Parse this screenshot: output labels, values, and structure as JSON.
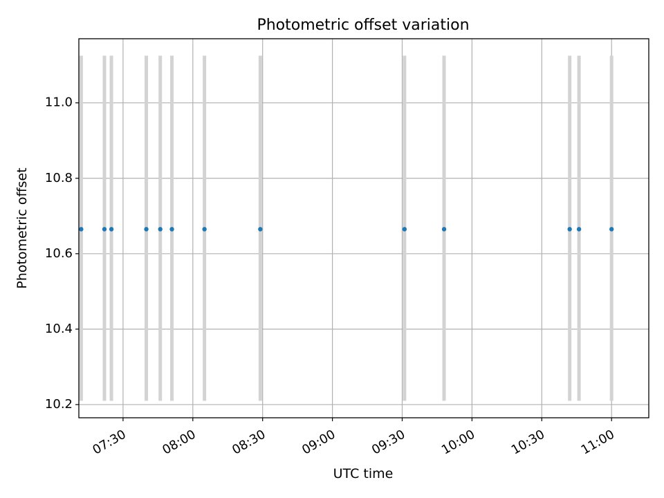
{
  "chart_data": {
    "type": "scatter",
    "title": "Photometric offset variation",
    "xlabel": "UTC time",
    "ylabel": "Photometric offset",
    "x_axis": {
      "kind": "time",
      "range": [
        "07:11",
        "11:16"
      ],
      "ticks": [
        "07:30",
        "08:00",
        "08:30",
        "09:00",
        "09:30",
        "10:00",
        "10:30",
        "11:00"
      ]
    },
    "y_axis": {
      "range": [
        10.165,
        11.17
      ],
      "ticks": [
        "10.2",
        "10.4",
        "10.6",
        "10.8",
        "11.0"
      ]
    },
    "grid": true,
    "points": [
      {
        "x": "07:12",
        "y": 10.665,
        "ylow": 10.21,
        "yhigh": 11.125
      },
      {
        "x": "07:22",
        "y": 10.665,
        "ylow": 10.21,
        "yhigh": 11.125
      },
      {
        "x": "07:25",
        "y": 10.665,
        "ylow": 10.21,
        "yhigh": 11.125
      },
      {
        "x": "07:40",
        "y": 10.665,
        "ylow": 10.21,
        "yhigh": 11.125
      },
      {
        "x": "07:46",
        "y": 10.665,
        "ylow": 10.21,
        "yhigh": 11.125
      },
      {
        "x": "07:51",
        "y": 10.665,
        "ylow": 10.21,
        "yhigh": 11.125
      },
      {
        "x": "08:05",
        "y": 10.665,
        "ylow": 10.21,
        "yhigh": 11.125
      },
      {
        "x": "08:29",
        "y": 10.665,
        "ylow": 10.21,
        "yhigh": 11.125
      },
      {
        "x": "09:31",
        "y": 10.665,
        "ylow": 10.21,
        "yhigh": 11.125
      },
      {
        "x": "09:48",
        "y": 10.665,
        "ylow": 10.21,
        "yhigh": 11.125
      },
      {
        "x": "10:42",
        "y": 10.665,
        "ylow": 10.21,
        "yhigh": 11.125
      },
      {
        "x": "10:46",
        "y": 10.665,
        "ylow": 10.21,
        "yhigh": 11.125
      },
      {
        "x": "11:00",
        "y": 10.665,
        "ylow": 10.21,
        "yhigh": 11.125
      }
    ],
    "colors": {
      "marker": "#1f77b4",
      "errorbar": "#d3d3d3",
      "grid": "#b0b0b0",
      "axes": "#000000"
    }
  }
}
